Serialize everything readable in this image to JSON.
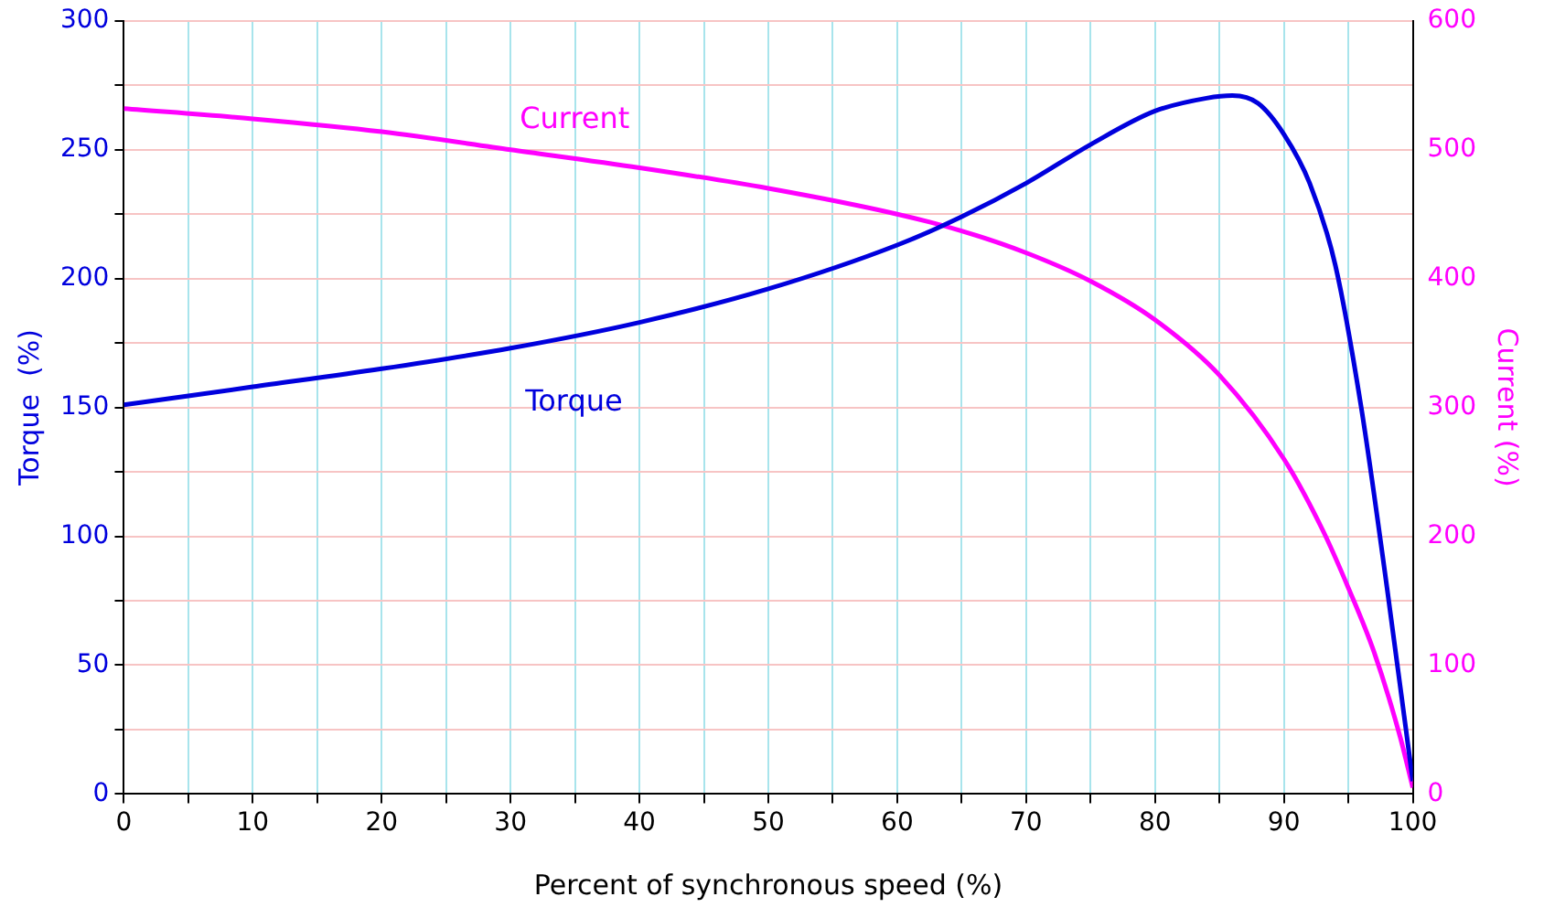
{
  "chart_data": {
    "type": "line",
    "xlabel": "Percent of synchronous speed (%)",
    "ylabel": "Torque  (%)",
    "y2label": "Current (%)",
    "xlim": [
      0,
      100
    ],
    "xticks": [
      0,
      {
        "value": 5,
        "label": null
      },
      10,
      {
        "value": 15,
        "label": null
      },
      20,
      {
        "value": 25,
        "label": null
      },
      30,
      {
        "value": 35,
        "label": null
      },
      40,
      {
        "value": 45,
        "label": null
      },
      50,
      {
        "value": 55,
        "label": null
      },
      60,
      {
        "value": 65,
        "label": null
      },
      70,
      {
        "value": 75,
        "label": null
      },
      80,
      {
        "value": 85,
        "label": null
      },
      90,
      {
        "value": 95,
        "label": null
      },
      100
    ],
    "ylim": [
      0,
      300
    ],
    "yticks": [
      0,
      {
        "value": 25,
        "label": null
      },
      50,
      {
        "value": 75,
        "label": null
      },
      100,
      {
        "value": 125,
        "label": null
      },
      150,
      {
        "value": 175,
        "label": null
      },
      200,
      {
        "value": 225,
        "label": null
      },
      250,
      {
        "value": 275,
        "label": null
      },
      300
    ],
    "y2lim": [
      0,
      600
    ],
    "y2ticks": [
      0,
      100,
      200,
      300,
      400,
      500,
      600
    ],
    "grid": true,
    "legend": false,
    "marker": "none",
    "line_style": "solid",
    "series": [
      {
        "name": "Torque",
        "color": "#0000dd",
        "x": [
          0,
          10,
          20,
          30,
          40,
          50,
          60,
          65,
          70,
          75,
          80,
          84,
          86,
          88,
          90,
          92,
          94,
          96,
          98,
          100
        ],
        "values": [
          151,
          158,
          165,
          173,
          183,
          196,
          213,
          224,
          237,
          252,
          265,
          270,
          271,
          268,
          256,
          237,
          205,
          150,
          80,
          5
        ]
      },
      {
        "name": "Current",
        "color": "#ff00ff",
        "axis": "y2",
        "x": [
          0,
          10,
          20,
          30,
          40,
          50,
          60,
          65,
          70,
          75,
          80,
          85,
          90,
          93,
          95,
          97,
          99,
          100
        ],
        "values": [
          532,
          524,
          514,
          500,
          486,
          470,
          450,
          437,
          420,
          398,
          368,
          325,
          260,
          205,
          160,
          110,
          45,
          5
        ]
      }
    ]
  }
}
